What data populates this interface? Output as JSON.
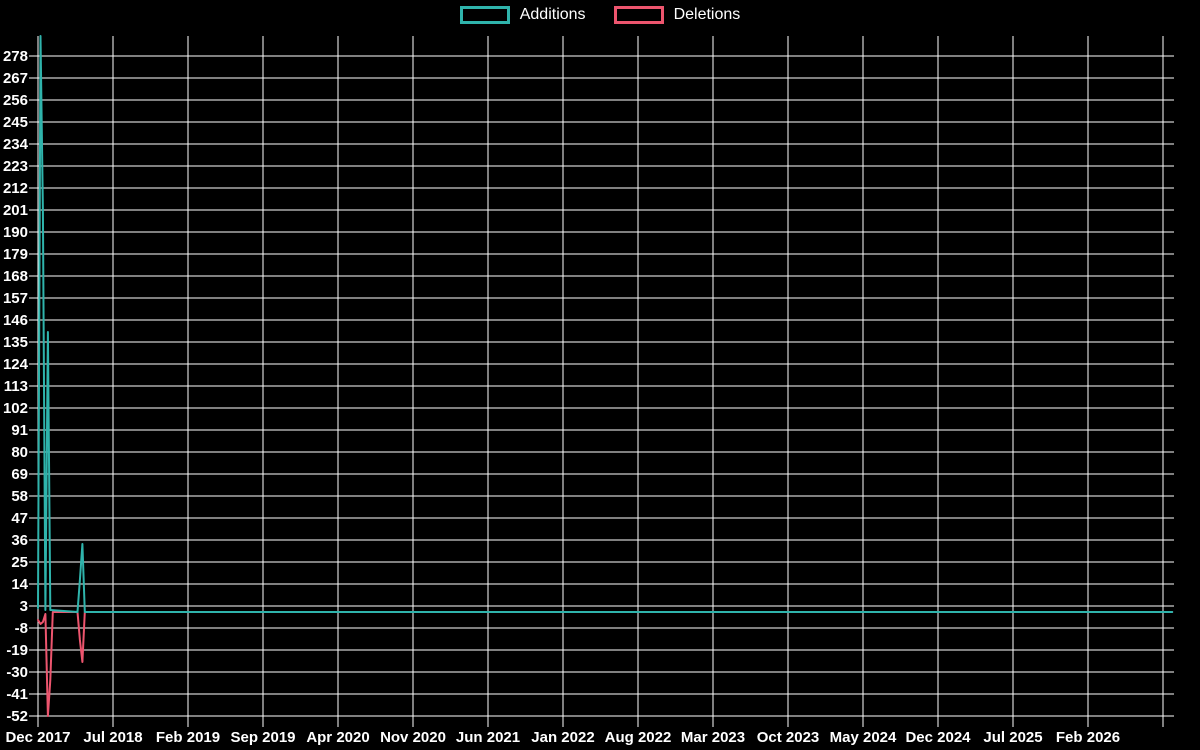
{
  "colors": {
    "background": "#000000",
    "grid": "#ffffff",
    "text": "#ffffff",
    "additions": "#2fb4ac",
    "deletions": "#ed556e",
    "baseline_blend": "#7fa9ab"
  },
  "legend": {
    "items": [
      {
        "label": "Additions",
        "color": "#2fb4ac"
      },
      {
        "label": "Deletions",
        "color": "#ed556e"
      }
    ]
  },
  "chart_data": {
    "type": "line",
    "title": "",
    "xlabel": "",
    "ylabel": "",
    "grid": true,
    "legend_position": "top-center",
    "ylim": [
      -52,
      289
    ],
    "y_tick_step": 11,
    "y_tick_labels": [
      278,
      267,
      256,
      245,
      234,
      223,
      212,
      201,
      190,
      179,
      168,
      157,
      146,
      135,
      124,
      113,
      102,
      91,
      80,
      69,
      58,
      47,
      36,
      25,
      14,
      3,
      -8,
      -19,
      -30,
      -41,
      -52
    ],
    "x_tick_labels": [
      "Dec 2017",
      "Jul 2018",
      "Feb 2019",
      "Sep 2019",
      "Apr 2020",
      "Nov 2020",
      "Jun 2021",
      "Jan 2022",
      "Aug 2022",
      "Mar 2023",
      "Oct 2023",
      "May 2024",
      "Dec 2024",
      "Jul 2025",
      "Feb 2026"
    ],
    "x_unit": "weeks since Dec 2017",
    "series": [
      {
        "name": "Additions",
        "color": "#2fb4ac",
        "points": [
          [
            0,
            2
          ],
          [
            1,
            288
          ],
          [
            2,
            201
          ],
          [
            3,
            1
          ],
          [
            4,
            140
          ],
          [
            5,
            1
          ],
          [
            16,
            0
          ],
          [
            17,
            16
          ],
          [
            18,
            34
          ],
          [
            19,
            0
          ],
          [
            460,
            0
          ]
        ]
      },
      {
        "name": "Deletions",
        "color": "#ed556e",
        "points": [
          [
            0,
            -4
          ],
          [
            1,
            -6
          ],
          [
            2,
            -5
          ],
          [
            3,
            -1
          ],
          [
            4,
            -52
          ],
          [
            5,
            -34
          ],
          [
            6,
            0
          ],
          [
            16,
            0
          ],
          [
            17,
            -14
          ],
          [
            18,
            -25
          ],
          [
            19,
            0
          ],
          [
            460,
            0
          ]
        ]
      }
    ]
  }
}
